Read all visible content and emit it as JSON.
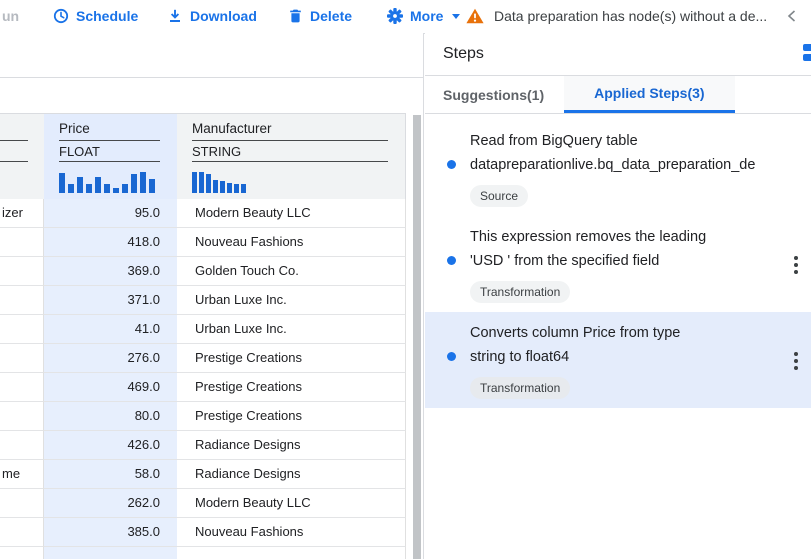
{
  "colors": {
    "accent": "#1a73e8",
    "histogram": "#1967d2",
    "selection": "#e8f0fe",
    "warning": "#e8710a"
  },
  "toolbar": {
    "run_fragment": "un",
    "schedule_label": "Schedule",
    "download_label": "Download",
    "delete_label": "Delete",
    "more_label": "More",
    "warning_text": "Data preparation has node(s) without a de..."
  },
  "table": {
    "columns": [
      {
        "name": "",
        "type": "",
        "note": "partially visible column cut off at left viewport edge"
      },
      {
        "name": "Price",
        "type": "FLOAT",
        "selected": true,
        "histogram": [
          20,
          9,
          16,
          9,
          16,
          9,
          5,
          9,
          19,
          21,
          14
        ]
      },
      {
        "name": "Manufacturer",
        "type": "STRING",
        "selected": false,
        "histogram": [
          21,
          21,
          19,
          13,
          12,
          10,
          9,
          9
        ]
      }
    ],
    "rows": [
      {
        "hidden": "izer",
        "price": "95.0",
        "manufacturer": "Modern Beauty LLC"
      },
      {
        "hidden": "",
        "price": "418.0",
        "manufacturer": "Nouveau Fashions"
      },
      {
        "hidden": "",
        "price": "369.0",
        "manufacturer": "Golden Touch Co."
      },
      {
        "hidden": "",
        "price": "371.0",
        "manufacturer": "Urban Luxe Inc."
      },
      {
        "hidden": "",
        "price": "41.0",
        "manufacturer": "Urban Luxe Inc."
      },
      {
        "hidden": "",
        "price": "276.0",
        "manufacturer": "Prestige Creations"
      },
      {
        "hidden": "",
        "price": "469.0",
        "manufacturer": "Prestige Creations"
      },
      {
        "hidden": "",
        "price": "80.0",
        "manufacturer": "Prestige Creations"
      },
      {
        "hidden": "",
        "price": "426.0",
        "manufacturer": "Radiance Designs"
      },
      {
        "hidden": "me",
        "price": "58.0",
        "manufacturer": "Radiance Designs"
      },
      {
        "hidden": "",
        "price": "262.0",
        "manufacturer": "Modern Beauty LLC"
      },
      {
        "hidden": "",
        "price": "385.0",
        "manufacturer": "Nouveau Fashions"
      }
    ]
  },
  "steps_panel": {
    "title": "Steps",
    "tabs": [
      {
        "label": "Suggestions(1)",
        "active": false
      },
      {
        "label": "Applied Steps(3)",
        "active": true
      }
    ],
    "steps": [
      {
        "line1": "Read from BigQuery table",
        "line2": "datapreparationlive.bq_data_preparation_de",
        "badge": "Source",
        "menu": false,
        "selected": false
      },
      {
        "line1": "This expression removes the leading",
        "line2": "'USD ' from the specified field",
        "badge": "Transformation",
        "menu": true,
        "selected": false
      },
      {
        "line1": "Converts column Price from type",
        "line2": "string to float64",
        "badge": "Transformation",
        "menu": true,
        "selected": true
      }
    ]
  }
}
